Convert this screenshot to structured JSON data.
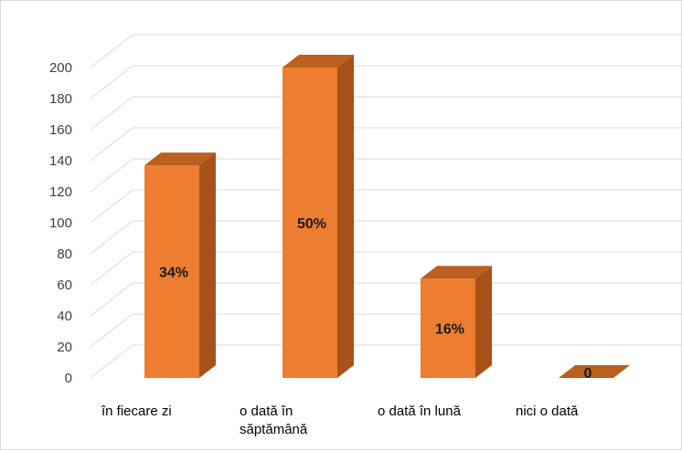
{
  "chart_data": {
    "type": "bar",
    "categories": [
      [
        "în fiecare zi"
      ],
      [
        "o dată în",
        "săptămână"
      ],
      [
        "o dată în lună"
      ],
      [
        "nici o dată"
      ]
    ],
    "values": [
      137,
      200,
      64,
      0
    ],
    "data_labels": [
      "34%",
      "50%",
      "16%",
      "0"
    ],
    "ylim": [
      0,
      200
    ],
    "yticks": [
      0,
      20,
      40,
      60,
      80,
      100,
      120,
      140,
      160,
      180,
      200
    ],
    "grid": true,
    "three_d": true
  },
  "colors": {
    "bar_front": "#ed7d31",
    "bar_side": "#a65219",
    "bar_top": "#b9601f",
    "grid": "#d9d9d9"
  }
}
